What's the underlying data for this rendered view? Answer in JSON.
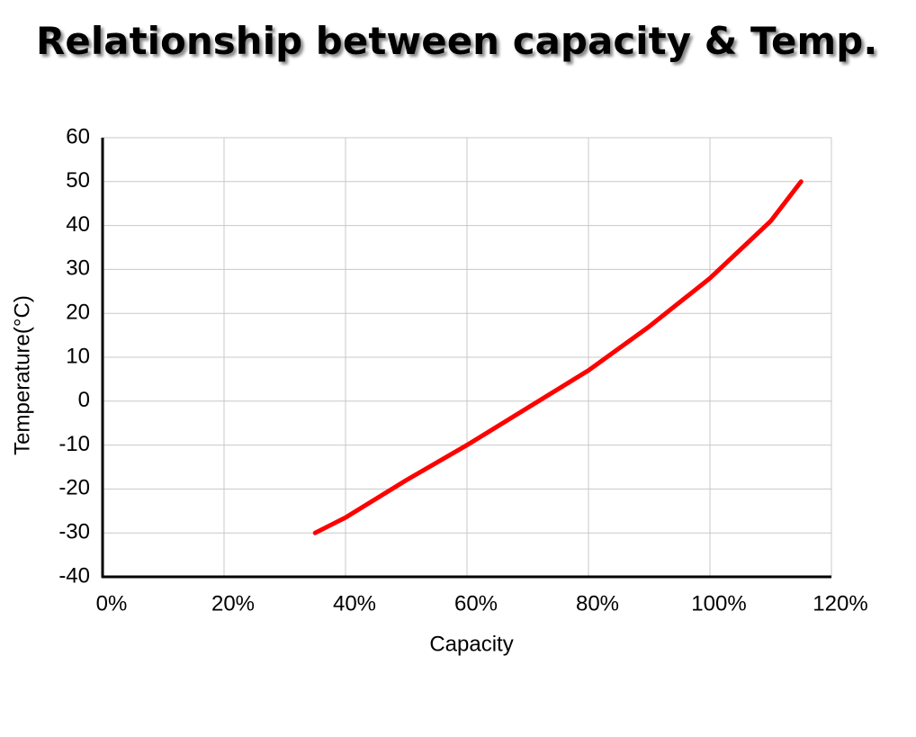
{
  "chart_data": {
    "type": "line",
    "title": "Relationship between capacity & Temp.",
    "x_label": "Capacity",
    "y_label": "Temperature(°C)",
    "x": [
      35,
      40,
      50,
      60,
      70,
      80,
      90,
      100,
      110,
      115
    ],
    "series": [
      {
        "color": "#ff0000",
        "values": [
          -30,
          -26.5,
          -18,
          -10,
          -1.5,
          7,
          17,
          28,
          41,
          50
        ]
      }
    ],
    "xlim": [
      0,
      120
    ],
    "xticks": [
      {
        "value": 0,
        "label": "0%"
      },
      {
        "value": 20,
        "label": "20%"
      },
      {
        "value": 40,
        "label": "40%"
      },
      {
        "value": 60,
        "label": "60%"
      },
      {
        "value": 80,
        "label": "80%"
      },
      {
        "value": 100,
        "label": "100%"
      },
      {
        "value": 120,
        "label": "120%"
      }
    ],
    "ylim": [
      -40,
      60
    ],
    "yticks": [
      -40,
      -30,
      -20,
      -10,
      0,
      10,
      20,
      30,
      40,
      50,
      60
    ],
    "grid": true
  }
}
